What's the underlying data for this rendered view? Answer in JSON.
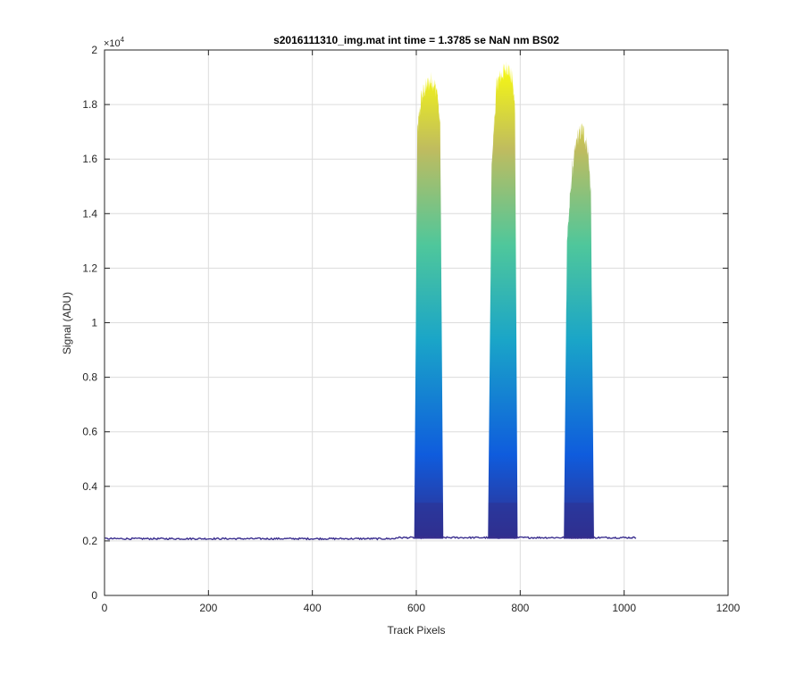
{
  "chart_data": {
    "type": "area",
    "title": "s2016111310_img.mat int time = 1.3785 se  NaN nm BS02",
    "xlabel": "Track Pixels",
    "ylabel": "Signal (ADU)",
    "xlim": [
      0,
      1200
    ],
    "ylim": [
      0,
      20000
    ],
    "y_exponent_label": "×10",
    "y_exponent_power": "4",
    "x_ticks": [
      0,
      200,
      400,
      600,
      800,
      1000,
      1200
    ],
    "x_tick_labels": [
      "0",
      "200",
      "400",
      "600",
      "800",
      "1000",
      "1200"
    ],
    "y_ticks": [
      0,
      2000,
      4000,
      6000,
      8000,
      10000,
      12000,
      14000,
      16000,
      18000,
      20000
    ],
    "y_tick_labels": [
      "0",
      "0.2",
      "0.4",
      "0.6",
      "0.8",
      "1",
      "1.2",
      "1.4",
      "1.6",
      "1.8",
      "2"
    ],
    "grid": true,
    "colormap": "parula",
    "colors": {
      "low": "#352a87",
      "mid_low": "#0f5cdd",
      "mid": "#1aa5c8",
      "mid_high": "#4fc79b",
      "high_mid": "#bfbc5f",
      "high": "#f9fb0e"
    },
    "baseline_level": 2080,
    "baseline_x_range": [
      1,
      1024
    ],
    "peaks": [
      {
        "x": [
          596,
          602,
          610,
          620,
          630,
          640,
          646,
          652
        ],
        "y": [
          2100,
          17000,
          18300,
          18700,
          18900,
          18500,
          17200,
          2100
        ]
      },
      {
        "x": [
          738,
          745,
          755,
          765,
          775,
          785,
          790,
          795
        ],
        "y": [
          2150,
          15800,
          18800,
          19100,
          19400,
          18900,
          17800,
          2150
        ]
      },
      {
        "x": [
          884,
          890,
          900,
          910,
          920,
          930,
          936,
          942
        ],
        "y": [
          2100,
          13000,
          15600,
          16800,
          17100,
          16400,
          14800,
          2100
        ]
      }
    ]
  }
}
